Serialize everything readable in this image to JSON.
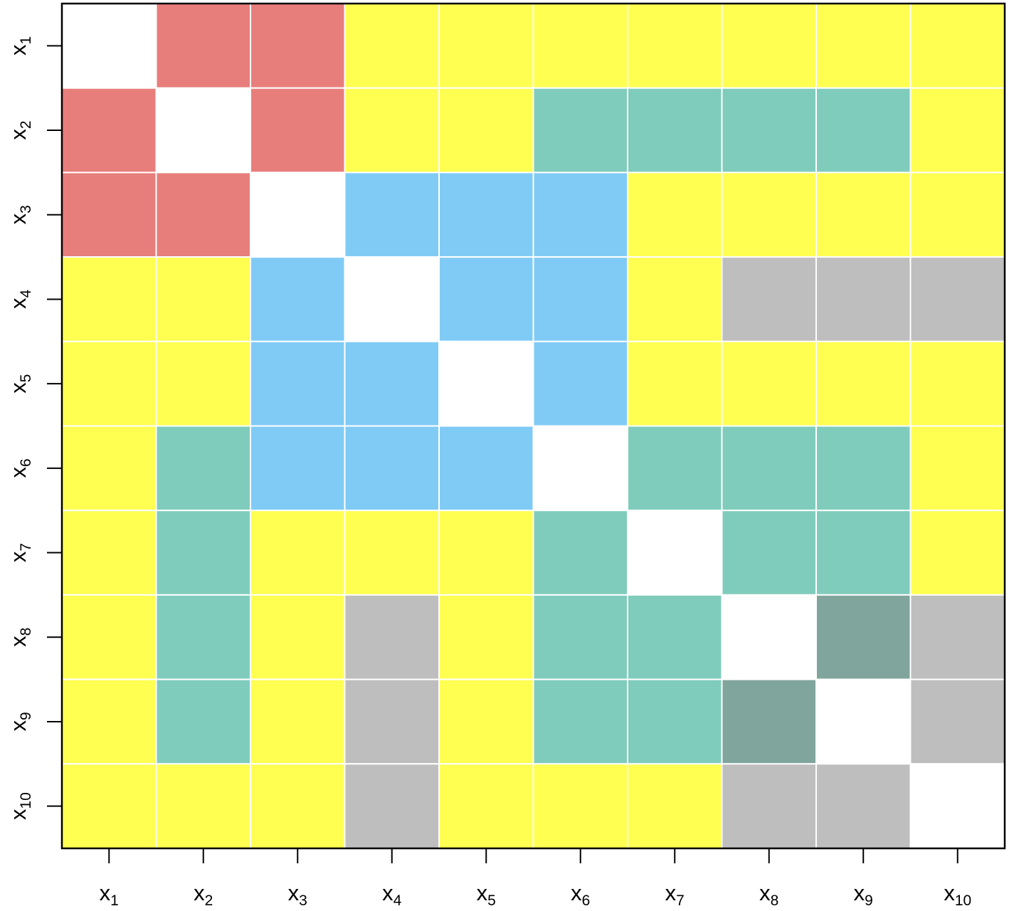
{
  "chart_data": {
    "type": "heatmap",
    "labels": [
      {
        "main": "x",
        "sub": "1"
      },
      {
        "main": "x",
        "sub": "2"
      },
      {
        "main": "x",
        "sub": "3"
      },
      {
        "main": "x",
        "sub": "4"
      },
      {
        "main": "x",
        "sub": "5"
      },
      {
        "main": "x",
        "sub": "6"
      },
      {
        "main": "x",
        "sub": "7"
      },
      {
        "main": "x",
        "sub": "8"
      },
      {
        "main": "x",
        "sub": "9"
      },
      {
        "main": "x",
        "sub": "10"
      }
    ],
    "colors": {
      "W": "#ffffff",
      "R": "#e87e7c",
      "Y": "#ffff52",
      "G": "#80ccbc",
      "B": "#80cbf5",
      "S": "#bebebe",
      "D": "#80a59c"
    },
    "cells": [
      [
        "W",
        "R",
        "R",
        "Y",
        "Y",
        "Y",
        "Y",
        "Y",
        "Y",
        "Y"
      ],
      [
        "R",
        "W",
        "R",
        "Y",
        "Y",
        "G",
        "G",
        "G",
        "G",
        "Y"
      ],
      [
        "R",
        "R",
        "W",
        "B",
        "B",
        "B",
        "Y",
        "Y",
        "Y",
        "Y"
      ],
      [
        "Y",
        "Y",
        "B",
        "W",
        "B",
        "B",
        "Y",
        "S",
        "S",
        "S"
      ],
      [
        "Y",
        "Y",
        "B",
        "B",
        "W",
        "B",
        "Y",
        "Y",
        "Y",
        "Y"
      ],
      [
        "Y",
        "G",
        "B",
        "B",
        "B",
        "W",
        "G",
        "G",
        "G",
        "Y"
      ],
      [
        "Y",
        "G",
        "Y",
        "Y",
        "Y",
        "G",
        "W",
        "G",
        "G",
        "Y"
      ],
      [
        "Y",
        "G",
        "Y",
        "S",
        "Y",
        "G",
        "G",
        "W",
        "D",
        "S"
      ],
      [
        "Y",
        "G",
        "Y",
        "S",
        "Y",
        "G",
        "G",
        "D",
        "W",
        "S"
      ],
      [
        "Y",
        "Y",
        "Y",
        "S",
        "Y",
        "Y",
        "Y",
        "S",
        "S",
        "W"
      ]
    ]
  }
}
